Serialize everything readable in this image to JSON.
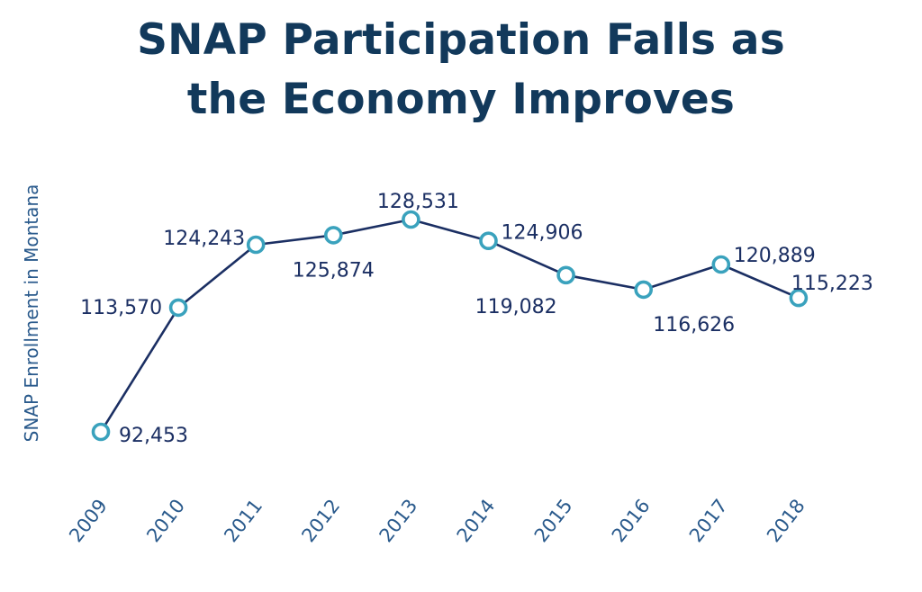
{
  "colors": {
    "title": "#12395b",
    "line": "#1b2f63",
    "marker": "#3aa2bd",
    "axis_text": "#2a5a8c"
  },
  "chart_data": {
    "type": "line",
    "title_lines": [
      "SNAP Participation Falls as",
      "the Economy Improves"
    ],
    "xlabel": "",
    "ylabel": "SNAP Enrollment in Montana",
    "categories": [
      "2009",
      "2010",
      "2011",
      "2012",
      "2013",
      "2014",
      "2015",
      "2016",
      "2017",
      "2018"
    ],
    "values": [
      92453,
      113570,
      124243,
      125874,
      128531,
      124906,
      119082,
      116626,
      120889,
      115223
    ],
    "data_labels": [
      "92,453",
      "113,570",
      "124,243",
      "125,874",
      "128,531",
      "124,906",
      "119,082",
      "116,626",
      "120,889",
      "115,223"
    ],
    "ylim": [
      92453,
      128531
    ],
    "grid": false,
    "legend": "none",
    "marker": "hollow-circle"
  }
}
